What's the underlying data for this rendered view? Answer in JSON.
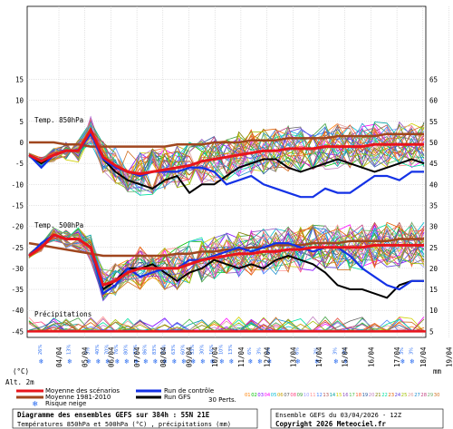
{
  "chart_data": {
    "type": "line",
    "title": "Diagramme des ensembles GEFS sur 384h : 55N 21E",
    "subtitle": "Températures 850hPa et 500hPa (°C) , précipitations (mm)",
    "source": "Ensemble GEFS du 03/04/2026 - 12Z",
    "copyright": "Copyright 2026 Meteociel.fr",
    "panel_labels": [
      "Temp. 850hPa",
      "Temp. 500hPa",
      "Précipitations"
    ],
    "left_axis_unit": "(°C)",
    "left_axis_sublabel": "Alt. 2m",
    "right_axis_unit": "mm",
    "left_ticks": [
      15,
      10,
      5,
      0,
      -5,
      -10,
      -15,
      -20,
      -25,
      -30,
      -35,
      -40,
      -45
    ],
    "right_ticks": [
      65,
      60,
      55,
      50,
      45,
      40,
      35,
      30,
      25,
      20,
      15,
      10,
      5
    ],
    "x_labels": [
      "04/04",
      "05/04",
      "06/04",
      "07/04",
      "08/04",
      "09/04",
      "10/04",
      "11/04",
      "12/04",
      "13/04",
      "14/04",
      "15/04",
      "16/04",
      "17/04",
      "18/04",
      "19/04"
    ],
    "legend": {
      "mean_scenarios": "Moyenne des scénarios",
      "mean_climo": "Moyenne 1981-2010",
      "snow_risk": "Risque neige",
      "control_run": "Run de contrôle",
      "gfs_run": "Run GFS",
      "perts_label": "30 Perts.",
      "pert_numbers": [
        "01",
        "02",
        "03",
        "04",
        "05",
        "06",
        "07",
        "08",
        "09",
        "10",
        "11",
        "12",
        "13",
        "14",
        "15",
        "16",
        "17",
        "18",
        "19",
        "20",
        "21",
        "22",
        "23",
        "24",
        "25",
        "26",
        "27",
        "28",
        "29",
        "30"
      ]
    },
    "colors": {
      "mean": "#e8141c",
      "climo": "#a0461e",
      "control": "#1432e6",
      "gfs": "#000000",
      "snow": "#2a6cf0",
      "grid": "#c8c8c8"
    },
    "t850_mean": [
      -3,
      -4.5,
      -3,
      -2,
      -2,
      3,
      -3.5,
      -5.5,
      -7,
      -7.5,
      -7,
      -6.5,
      -6,
      -5.5,
      -4.5,
      -4,
      -3.5,
      -3,
      -2.5,
      -2,
      -2,
      -1.5,
      -1.5,
      -1.5,
      -1,
      -1,
      -1,
      -1,
      -0.5,
      -0.5,
      -0.5,
      -0.5,
      -0.5
    ],
    "t850_climo": [
      0,
      0,
      0,
      -0.5,
      -0.5,
      -1,
      -1,
      -1,
      -1,
      -1,
      -1,
      -1,
      -0.5,
      -0.5,
      -0.5,
      0,
      0,
      0,
      0.5,
      0.5,
      0.5,
      1,
      1,
      1,
      1,
      1.5,
      1.5,
      1.5,
      1.5,
      2,
      2,
      2,
      2
    ],
    "t850_control": [
      -3,
      -6,
      -3,
      -2,
      -2,
      2,
      -4,
      -6,
      -7,
      -8,
      -7,
      -7,
      -7,
      -6,
      -6,
      -7,
      -10,
      -9,
      -8,
      -10,
      -11,
      -12,
      -13,
      -13,
      -11,
      -12,
      -12,
      -10,
      -8,
      -8,
      -9,
      -7,
      -7
    ],
    "t850_gfs": [
      -3,
      -5,
      -3,
      -2,
      -2,
      3,
      -4,
      -7,
      -9,
      -10,
      -11,
      -9,
      -8,
      -12,
      -10,
      -10,
      -8,
      -6,
      -5,
      -4,
      -4,
      -6,
      -7,
      -6,
      -5,
      -4,
      -5,
      -6,
      -7,
      -6,
      -5,
      -4,
      -5
    ],
    "t500_mean": [
      -27,
      -25,
      -22,
      -23,
      -23,
      -25,
      -34,
      -33,
      -31,
      -30,
      -30,
      -30,
      -30,
      -29,
      -28,
      -27.5,
      -27,
      -26.5,
      -26.5,
      -26,
      -26,
      -25.5,
      -25.5,
      -25,
      -25,
      -25,
      -25,
      -25,
      -24.5,
      -24.5,
      -24.5,
      -24.5,
      -24.5
    ],
    "t500_climo": [
      -24,
      -24.5,
      -25,
      -25.5,
      -26,
      -26.5,
      -27,
      -27,
      -27,
      -27,
      -27,
      -27,
      -26.5,
      -26.5,
      -26,
      -26,
      -25.5,
      -25.5,
      -25,
      -25,
      -24.5,
      -24.5,
      -24.5,
      -24,
      -24,
      -24,
      -23.5,
      -23.5,
      -23.5,
      -23.5,
      -23,
      -23,
      -23
    ],
    "t500_control": [
      -27,
      -24,
      -22,
      -23,
      -23,
      -25,
      -36,
      -34,
      -30,
      -32,
      -31,
      -30,
      -30,
      -28,
      -28,
      -27,
      -26,
      -25,
      -26,
      -25,
      -24,
      -24,
      -25,
      -26,
      -25,
      -25,
      -27,
      -30,
      -32,
      -34,
      -35,
      -33,
      -33
    ],
    "t500_gfs": [
      -27,
      -24,
      -22,
      -23,
      -23,
      -25,
      -35,
      -33,
      -30,
      -30,
      -29,
      -31,
      -33,
      -31,
      -30,
      -28,
      -29,
      -30,
      -29,
      -30,
      -28,
      -27,
      -28,
      -29,
      -31,
      -34,
      -35,
      -35,
      -36,
      -37,
      -34,
      -33,
      -33
    ],
    "snow_risk_pct": [
      "26%",
      "",
      "",
      "13%",
      "",
      "3%",
      "40%",
      "70%",
      "76%",
      "80%",
      "73%",
      "86%",
      "83%",
      "73%",
      "63%",
      "60%",
      "53%",
      "30%",
      "16%",
      "10%",
      "13%",
      "",
      "6%",
      "3%",
      "3%",
      "",
      "",
      "6%",
      "",
      "3%",
      "",
      "3%",
      "3%",
      "",
      "",
      "",
      "",
      "",
      "3%",
      "3%",
      ""
    ]
  }
}
